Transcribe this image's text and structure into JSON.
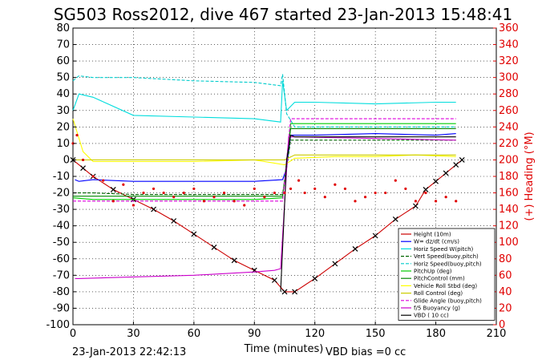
{
  "chart_data": {
    "type": "line",
    "title": "SG503 Ross2012, dive 467 started 23-Jan-2013 15:48:41",
    "xlabel": "Time (minutes)",
    "ylabel_right": "(+) Heading (°M)",
    "footer_left": "23-Jan-2013 22:42:13",
    "footer_right": "VBD bias =0 cc",
    "xlim": [
      0,
      210
    ],
    "ylim": [
      -100,
      80
    ],
    "ylim_right": [
      0,
      360
    ],
    "x_ticks": [
      "0",
      "30",
      "60",
      "90",
      "120",
      "150",
      "180",
      "210"
    ],
    "y_ticks": [
      "80",
      "70",
      "60",
      "50",
      "40",
      "30",
      "20",
      "10",
      "0",
      "-10",
      "-20",
      "-30",
      "-40",
      "-50",
      "-60",
      "-70",
      "-80",
      "-90",
      "-100"
    ],
    "y_ticks_right": [
      "360",
      "340",
      "320",
      "300",
      "280",
      "260",
      "240",
      "220",
      "200",
      "180",
      "160",
      "140",
      "120",
      "100",
      "80",
      "60",
      "40",
      "20",
      "0"
    ],
    "grid": true,
    "legend_position": "bottom-right",
    "series": [
      {
        "name": "Height (10m)",
        "color": "#cc0000",
        "marker": "x",
        "x": [
          0,
          5,
          10,
          20,
          30,
          40,
          50,
          60,
          70,
          80,
          90,
          100,
          105,
          110,
          120,
          130,
          140,
          150,
          160,
          170,
          175,
          180,
          185,
          190,
          193
        ],
        "y": [
          0,
          -5,
          -10,
          -18,
          -24,
          -30,
          -37,
          -45,
          -53,
          -61,
          -67,
          -73,
          -80,
          -80,
          -72,
          -63,
          -54,
          -46,
          -36,
          -28,
          -18,
          -13,
          -8,
          -3,
          0
        ]
      },
      {
        "name": "W= dz/dt (cm/s)",
        "color": "#0000ff",
        "x": [
          1,
          3,
          10,
          30,
          60,
          90,
          104,
          106,
          108,
          120,
          150,
          180,
          190
        ],
        "y": [
          -12,
          -13,
          -12,
          -13,
          -13,
          -13,
          -12,
          -5,
          15,
          15,
          16,
          15,
          16
        ]
      },
      {
        "name": "Horiz Speed W(pitch)",
        "color": "#00dddd",
        "x": [
          0,
          3,
          10,
          30,
          60,
          90,
          103,
          104,
          106,
          110,
          120,
          150,
          180,
          190
        ],
        "y": [
          30,
          40,
          38,
          27,
          26,
          25,
          23,
          48,
          30,
          35,
          35,
          34,
          35,
          35
        ]
      },
      {
        "name": "Vert Speed(buoy,pitch)",
        "color": "#006600",
        "dash": "4 2",
        "x": [
          0,
          10,
          30,
          60,
          90,
          104,
          108,
          120,
          150,
          180,
          190
        ],
        "y": [
          -20,
          -20,
          -21,
          -21,
          -21,
          -21,
          12,
          12,
          12,
          12,
          12
        ]
      },
      {
        "name": "Horiz Speed(buoy,pitch)",
        "color": "#00cccc",
        "dash": "4 2",
        "x": [
          0,
          3,
          10,
          30,
          60,
          90,
          103,
          104,
          106,
          110,
          150,
          190
        ],
        "y": [
          48,
          51,
          50,
          50,
          48,
          47,
          45,
          52,
          28,
          20,
          20,
          20
        ]
      },
      {
        "name": "PitchUp (deg)",
        "color": "#00cc00",
        "x": [
          0,
          10,
          30,
          60,
          90,
          104,
          108,
          120,
          150,
          180,
          190
        ],
        "y": [
          -23,
          -24,
          -24,
          -24,
          -24,
          -23,
          22,
          22,
          22,
          22,
          22
        ]
      },
      {
        "name": "PitchControl (mm)",
        "color": "#008800",
        "x": [
          0,
          10,
          30,
          60,
          90,
          104,
          108,
          120,
          150,
          180,
          190
        ],
        "y": [
          -22,
          -22,
          -22,
          -22,
          -22,
          -22,
          19,
          19,
          19,
          19,
          19
        ]
      },
      {
        "name": "Vehicle Roll Stbd (deg)",
        "color": "#ffff00",
        "x": [
          0,
          5,
          10,
          30,
          60,
          90,
          105,
          110,
          130,
          150,
          170,
          190
        ],
        "y": [
          25,
          5,
          -1,
          -1,
          -1,
          0,
          -3,
          1,
          2,
          2,
          3,
          2
        ]
      },
      {
        "name": "Roll Control (deg)",
        "color": "#cccc00",
        "x": [
          0,
          10,
          30,
          60,
          90,
          105,
          110,
          150,
          190
        ],
        "y": [
          0,
          0,
          0,
          0,
          0,
          0,
          3,
          3,
          3
        ]
      },
      {
        "name": "Glide Angle (buoy,pitch)",
        "color": "#dd00dd",
        "dash": "4 2",
        "x": [
          0,
          10,
          30,
          60,
          90,
          104,
          108,
          150,
          190
        ],
        "y": [
          -25,
          -25,
          -25,
          -25,
          -25,
          -25,
          25,
          25,
          25
        ]
      },
      {
        "name": "f/5 Buoyancy (g)",
        "color": "#cc00cc",
        "x": [
          1,
          3,
          30,
          60,
          90,
          100,
          103,
          107,
          110,
          150,
          190
        ],
        "y": [
          -72,
          -72,
          -71,
          -70,
          -68,
          -67,
          -66,
          14,
          14,
          13,
          12
        ]
      },
      {
        "name": "VBD ( 10 cc)",
        "color": "#000000",
        "x": [
          103,
          106,
          108,
          110,
          150,
          190
        ],
        "y": [
          -80,
          0,
          15,
          14,
          14,
          14
        ]
      }
    ],
    "heading": {
      "name": "Heading",
      "color": "#e00000",
      "axis": "right",
      "x": [
        0,
        2,
        5,
        10,
        15,
        20,
        25,
        30,
        35,
        40,
        45,
        50,
        55,
        60,
        65,
        70,
        75,
        80,
        85,
        90,
        95,
        100,
        105,
        108,
        112,
        115,
        120,
        125,
        130,
        135,
        140,
        145,
        150,
        155,
        160,
        165,
        170,
        175,
        180,
        185,
        190
      ],
      "y": [
        220,
        230,
        200,
        180,
        175,
        150,
        170,
        145,
        160,
        165,
        160,
        155,
        160,
        165,
        150,
        155,
        160,
        150,
        145,
        165,
        155,
        160,
        160,
        165,
        175,
        160,
        165,
        155,
        170,
        165,
        150,
        155,
        160,
        160,
        175,
        165,
        150,
        160,
        150,
        155,
        150
      ]
    }
  }
}
